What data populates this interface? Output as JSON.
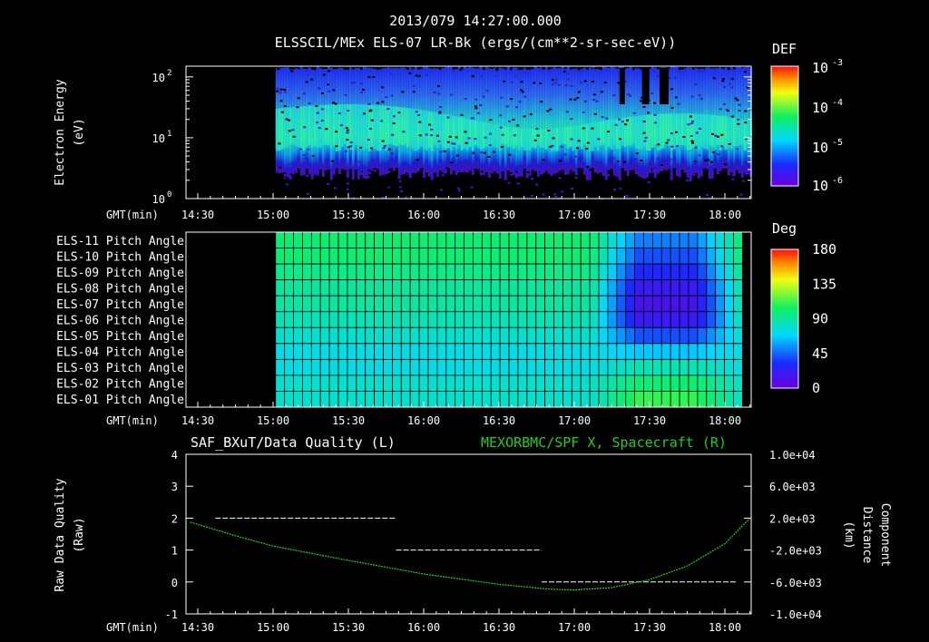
{
  "header": {
    "timestamp": "2013/079 14:27:00.000",
    "title": "ELSSCIL/MEx ELS-07 LR-Bk  (ergs/(cm**2-sr-sec-eV))"
  },
  "gmt_label": "GMT(min)",
  "time_ticks": [
    "14:30",
    "15:00",
    "15:30",
    "16:00",
    "16:30",
    "17:00",
    "17:30",
    "18:00"
  ],
  "colors": {
    "background": "#000000",
    "line_green": "#22cc22",
    "grid": "#000000"
  },
  "chart_data": [
    {
      "type": "heatmap",
      "id": "energy_spectrogram",
      "ylabel_lines": [
        "Electron Energy",
        "(eV)"
      ],
      "y_scale": "log",
      "ylim": [
        1,
        150
      ],
      "y_ticks": [
        {
          "exp": "0"
        },
        {
          "exp": "1"
        },
        {
          "exp": "2"
        }
      ],
      "x_range": [
        "14:27",
        "18:10"
      ],
      "data_start": "15:01",
      "colorbar": {
        "title": "DEF",
        "scale": "log",
        "ticks": [
          {
            "exp": "-3"
          },
          {
            "exp": "-4"
          },
          {
            "exp": "-5"
          },
          {
            "exp": "-6"
          }
        ]
      }
    },
    {
      "type": "heatmap",
      "id": "pitch_angle",
      "rows": [
        "ELS-11 Pitch Angle",
        "ELS-10 Pitch Angle",
        "ELS-09 Pitch Angle",
        "ELS-08 Pitch Angle",
        "ELS-07 Pitch Angle",
        "ELS-06 Pitch Angle",
        "ELS-05 Pitch Angle",
        "ELS-04 Pitch Angle",
        "ELS-03 Pitch Angle",
        "ELS-02 Pitch Angle",
        "ELS-01 Pitch Angle"
      ],
      "data_start": "15:01",
      "data_end": "18:07",
      "colorbar": {
        "title": "Deg",
        "ticks": [
          "180",
          "135",
          "90",
          "45",
          "0"
        ],
        "range": [
          0,
          180
        ]
      },
      "approx_values_deg": {
        "typical": [
          100,
          100,
          95,
          90,
          90,
          85,
          80,
          75,
          75,
          80,
          80
        ],
        "late_17_15_to_17_55": [
          50,
          40,
          30,
          20,
          15,
          20,
          40,
          65,
          85,
          100,
          110
        ]
      }
    },
    {
      "type": "line",
      "id": "data_quality",
      "left_title": "SAF_BXuT/Data Quality (L)",
      "right_title": "MEXORBMC/SPF X, Spacecraft (R)",
      "ylabel_left_lines": [
        "Raw Data Quality",
        "(Raw)"
      ],
      "ylabel_right_lines": [
        "Component",
        "Distance",
        "(km)"
      ],
      "ylim_left": [
        -1,
        4
      ],
      "y_ticks_left": [
        "4",
        "3",
        "2",
        "1",
        "0",
        "-1"
      ],
      "ylim_right": [
        -10000,
        10000
      ],
      "y_ticks_right": [
        "1.0e+04",
        "6.0e+03",
        "2.0e+03",
        "-2.0e+03",
        "-6.0e+03",
        "-1.0e+04"
      ],
      "series": [
        {
          "axis": "left",
          "color": "#ffffff",
          "style": "dashed",
          "segments": [
            {
              "start": "14:37",
              "end": "15:49",
              "value": 2
            },
            {
              "start": "15:49",
              "end": "16:47",
              "value": 1
            },
            {
              "start": "16:47",
              "end": "18:05",
              "value": 0
            }
          ]
        },
        {
          "axis": "right",
          "color": "#22cc22",
          "style": "dotted",
          "points": [
            [
              "14:27",
              1500
            ],
            [
              "14:45",
              -200
            ],
            [
              "15:00",
              -1500
            ],
            [
              "15:30",
              -3300
            ],
            [
              "16:00",
              -5000
            ],
            [
              "16:30",
              -6300
            ],
            [
              "16:50",
              -6900
            ],
            [
              "17:00",
              -7000
            ],
            [
              "17:15",
              -6700
            ],
            [
              "17:30",
              -5700
            ],
            [
              "17:45",
              -4000
            ],
            [
              "18:00",
              -1200
            ],
            [
              "18:10",
              2000
            ]
          ]
        }
      ]
    }
  ]
}
